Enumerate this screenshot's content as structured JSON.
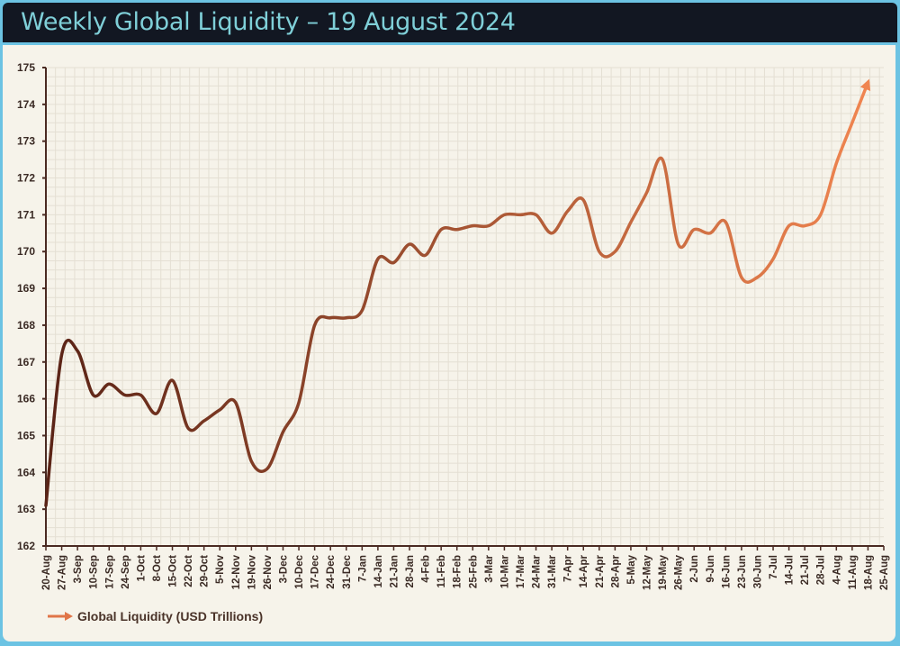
{
  "title": "Weekly Global Liquidity – 19 August 2024",
  "colors": {
    "line_start": "#5a2316",
    "line_end": "#f08550",
    "title_bg": "#121722",
    "title_text": "#7fcfd8",
    "frame": "#6cc3e3",
    "plot_bg": "#f6f3ea"
  },
  "chart_data": {
    "type": "line",
    "title": "Weekly Global Liquidity – 19 August 2024",
    "xlabel": "",
    "ylabel": "",
    "ylim": [
      162,
      175
    ],
    "yticks": [
      162,
      163,
      164,
      165,
      166,
      167,
      168,
      169,
      170,
      171,
      172,
      173,
      174,
      175
    ],
    "grid": true,
    "legend_position": "bottom-left",
    "x": [
      "20-Aug",
      "27-Aug",
      "3-Sep",
      "10-Sep",
      "17-Sep",
      "24-Sep",
      "1-Oct",
      "8-Oct",
      "15-Oct",
      "22-Oct",
      "29-Oct",
      "5-Nov",
      "12-Nov",
      "19-Nov",
      "26-Nov",
      "3-Dec",
      "10-Dec",
      "17-Dec",
      "24-Dec",
      "31-Dec",
      "7-Jan",
      "14-Jan",
      "21-Jan",
      "28-Jan",
      "4-Feb",
      "11-Feb",
      "18-Feb",
      "25-Feb",
      "3-Mar",
      "10-Mar",
      "17-Mar",
      "24-Mar",
      "31-Mar",
      "7-Apr",
      "14-Apr",
      "21-Apr",
      "28-Apr",
      "5-May",
      "12-May",
      "19-May",
      "26-May",
      "2-Jun",
      "9-Jun",
      "16-Jun",
      "23-Jun",
      "30-Jun",
      "7-Jul",
      "14-Jul",
      "21-Jul",
      "28-Jul",
      "4-Aug",
      "11-Aug",
      "18-Aug",
      "25-Aug"
    ],
    "series": [
      {
        "name": "Global Liquidity (USD Trillions)",
        "values": [
          163.1,
          167.2,
          167.3,
          166.1,
          166.4,
          166.1,
          166.1,
          165.6,
          166.5,
          165.2,
          165.4,
          165.7,
          165.9,
          164.3,
          164.1,
          165.1,
          165.9,
          168.0,
          168.2,
          168.2,
          168.4,
          169.8,
          169.7,
          170.2,
          169.9,
          170.6,
          170.6,
          170.7,
          170.7,
          171.0,
          171.0,
          171.0,
          170.5,
          171.1,
          171.4,
          170.0,
          170.0,
          170.8,
          171.6,
          172.5,
          170.2,
          170.6,
          170.5,
          170.8,
          169.3,
          169.3,
          169.8,
          170.7,
          170.7,
          171.0,
          172.4,
          173.5,
          174.6,
          null
        ]
      }
    ]
  },
  "legend": {
    "label": "Global Liquidity (USD Trillions)",
    "icon": "arrow-right-icon"
  }
}
